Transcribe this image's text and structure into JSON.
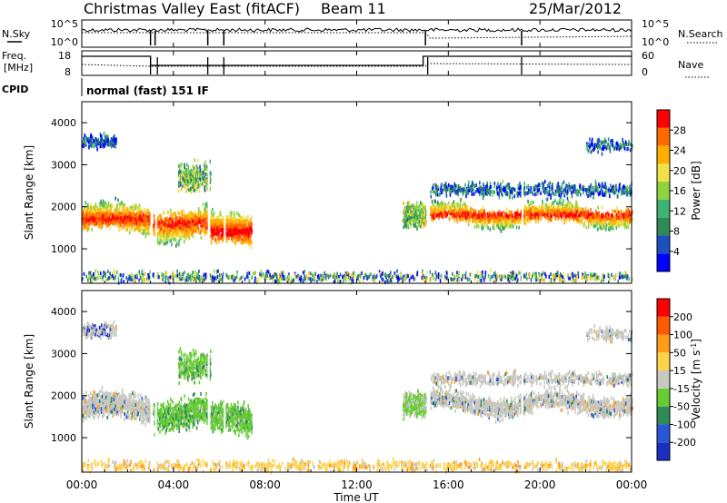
{
  "header": {
    "title": "Christmas Valley East (fitACF)",
    "beam": "Beam 11",
    "date": "25/Mar/2012"
  },
  "noise_panel": {
    "left_label": "N.Sky",
    "left_ticks": [
      "10^5",
      "10^0"
    ],
    "right_ticks": [
      "10^5",
      "10^0"
    ],
    "right_label": "N.Search"
  },
  "freq_panel": {
    "left_label_1": "Freq.",
    "left_label_2": "[MHz]",
    "left_ticks": [
      "18",
      "8"
    ],
    "right_ticks": [
      "60",
      "0"
    ],
    "right_label": "Nave"
  },
  "cpid": {
    "label": "CPID",
    "value": "normal (fast) 151 IF"
  },
  "chart_data": [
    {
      "type": "heatmap",
      "parameter": "Power",
      "ylabel": "Slant Range [km]",
      "ylim": [
        180,
        4500
      ],
      "xlim": [
        0,
        24
      ],
      "y_ticks": [
        "4000",
        "3000",
        "2000",
        "1000"
      ],
      "colorbar_label": "Power [dB]",
      "colorbar_ticks": [
        "28",
        "24",
        "20",
        "16",
        "12",
        "8",
        "4"
      ],
      "colorbar_colors": [
        "#0000ff",
        "#1e4fbf",
        "#2e8b57",
        "#3cb371",
        "#8fd13f",
        "#f0e04a",
        "#ffae00",
        "#ff6a00",
        "#ff0000"
      ],
      "colorbar_range": [
        0,
        32
      ]
    },
    {
      "type": "heatmap",
      "parameter": "Velocity",
      "ylabel": "Slant Range [km]",
      "ylim": [
        180,
        4500
      ],
      "xlim": [
        0,
        24
      ],
      "y_ticks": [
        "4000",
        "3000",
        "2000",
        "1000"
      ],
      "colorbar_label": "Velocity [m s",
      "colorbar_label_sup": "-1",
      "colorbar_label_end": "]",
      "colorbar_ticks": [
        "200",
        "100",
        "50",
        "15",
        "-15",
        "-50",
        "-100",
        "-200"
      ],
      "colorbar_colors": [
        "#1a2fbf",
        "#2a56d6",
        "#2e8b57",
        "#66cc33",
        "#c8c8c0",
        "#ffd24a",
        "#ff9a1a",
        "#ff5a00",
        "#ff0000"
      ]
    }
  ],
  "x_axis": {
    "ticks": [
      "00:00",
      "04:00",
      "08:00",
      "12:00",
      "16:00",
      "20:00",
      "00:00"
    ],
    "label": "Time UT"
  }
}
